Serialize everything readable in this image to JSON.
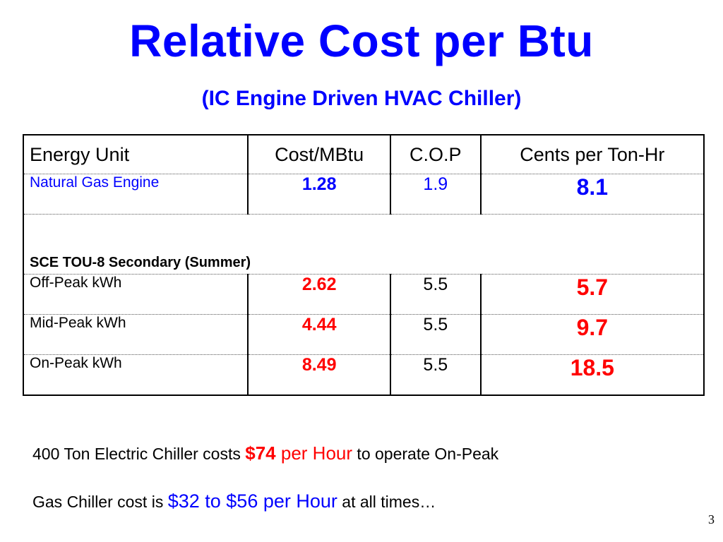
{
  "title": "Relative Cost per Btu",
  "subtitle": "(IC Engine Driven HVAC Chiller)",
  "table": {
    "headers": [
      "Energy Unit",
      "Cost/MBtu",
      "C.O.P",
      "Cents per Ton-Hr"
    ],
    "gas_row": {
      "unit": "Natural Gas Engine",
      "cost": "1.28",
      "cop": "1.9",
      "cents": "8.1"
    },
    "section_label": "SCE TOU-8 Secondary (Summer)",
    "electric_rows": [
      {
        "unit": "Off-Peak kWh",
        "cost": "2.62",
        "cop": "5.5",
        "cents": "5.7"
      },
      {
        "unit": "Mid-Peak kWh",
        "cost": "4.44",
        "cop": "5.5",
        "cents": "9.7"
      },
      {
        "unit": "On-Peak kWh",
        "cost": "8.49",
        "cop": "5.5",
        "cents": "18.5"
      }
    ]
  },
  "notes": {
    "line1": {
      "prefix": "400 Ton Electric Chiller costs ",
      "amount": "$74",
      "unit": " per Hour",
      "suffix": " to operate On-Peak"
    },
    "line2": {
      "prefix": "Gas Chiller cost is ",
      "range": "$32 to $56 per Hour",
      "suffix": " at all times…"
    }
  },
  "page_number": "3",
  "colors": {
    "title": "#0000ff",
    "highlight_red": "#ff0000",
    "highlight_blue": "#0000ff"
  }
}
